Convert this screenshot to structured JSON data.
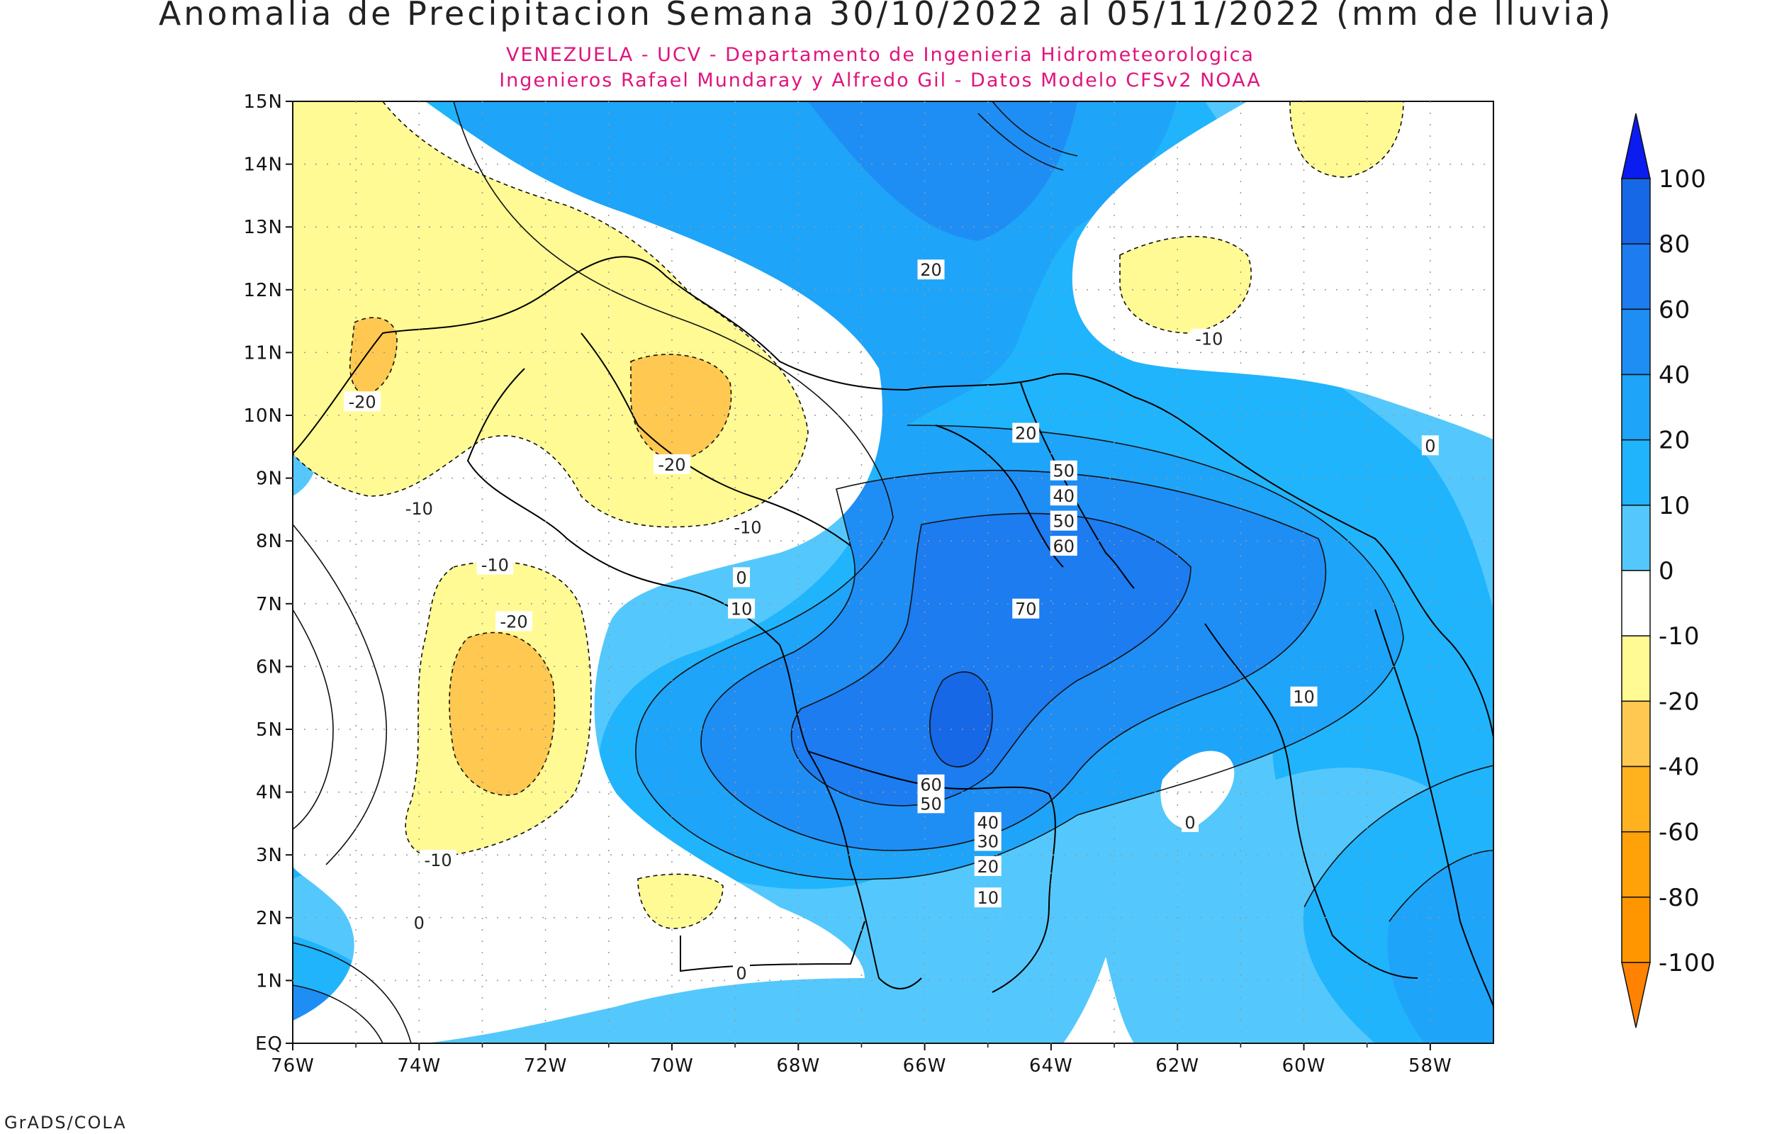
{
  "title": "Anomalia de Precipitacion Semana 30/10/2022 al 05/11/2022 (mm de lluvia)",
  "subtitle_line1": "VENEZUELA - UCV - Departamento de Ingenieria Hidrometeorologica",
  "subtitle_line2": "Ingenieros Rafael Mundaray y Alfredo Gil - Datos Modelo CFSv2 NOAA",
  "footer": "GrADS/COLA",
  "map": {
    "lon_range": [
      -76,
      -57
    ],
    "lat_range": [
      0,
      15
    ],
    "lat_ticks": [
      "15N",
      "14N",
      "13N",
      "12N",
      "11N",
      "10N",
      "9N",
      "8N",
      "7N",
      "6N",
      "5N",
      "4N",
      "3N",
      "2N",
      "1N",
      "EQ"
    ],
    "lon_ticks": [
      "76W",
      "74W",
      "72W",
      "70W",
      "68W",
      "66W",
      "64W",
      "62W",
      "60W",
      "58W"
    ],
    "grid_lines": "dotted"
  },
  "colorbar": {
    "ticks": [
      "100",
      "80",
      "60",
      "40",
      "20",
      "10",
      "0",
      "-10",
      "-20",
      "-40",
      "-60",
      "-80",
      "-100"
    ],
    "colors": [
      "#0a1cf0",
      "#1668e6",
      "#1c7cf0",
      "#1e8ef5",
      "#1ea4f8",
      "#20b4fc",
      "#54c8fc",
      "#ffffff",
      "#fffa94",
      "#ffc850",
      "#ffb21e",
      "#ffa20a",
      "#ff9600",
      "#ff8200"
    ]
  },
  "contour_labels": [
    {
      "text": "20",
      "lon": -65.9,
      "lat": 12.3
    },
    {
      "text": "-10",
      "lon": -61.5,
      "lat": 11.2
    },
    {
      "text": "-20",
      "lon": -74.9,
      "lat": 10.2
    },
    {
      "text": "-20",
      "lon": -70.0,
      "lat": 9.2
    },
    {
      "text": "-10",
      "lon": -74.0,
      "lat": 8.5
    },
    {
      "text": "-10",
      "lon": -68.8,
      "lat": 8.2
    },
    {
      "text": "20",
      "lon": -64.4,
      "lat": 9.7
    },
    {
      "text": "50",
      "lon": -63.8,
      "lat": 9.1
    },
    {
      "text": "40",
      "lon": -63.8,
      "lat": 8.7
    },
    {
      "text": "50",
      "lon": -63.8,
      "lat": 8.3
    },
    {
      "text": "60",
      "lon": -63.8,
      "lat": 7.9
    },
    {
      "text": "-10",
      "lon": -72.8,
      "lat": 7.6
    },
    {
      "text": "0",
      "lon": -68.9,
      "lat": 7.4
    },
    {
      "text": "10",
      "lon": -68.9,
      "lat": 6.9
    },
    {
      "text": "70",
      "lon": -64.4,
      "lat": 6.9
    },
    {
      "text": "-20",
      "lon": -72.5,
      "lat": 6.7
    },
    {
      "text": "0",
      "lon": -58.0,
      "lat": 9.5
    },
    {
      "text": "10",
      "lon": -60.0,
      "lat": 5.5
    },
    {
      "text": "0",
      "lon": -61.8,
      "lat": 3.5
    },
    {
      "text": "60",
      "lon": -65.9,
      "lat": 4.1
    },
    {
      "text": "50",
      "lon": -65.9,
      "lat": 3.8
    },
    {
      "text": "40",
      "lon": -65.0,
      "lat": 3.5
    },
    {
      "text": "30",
      "lon": -65.0,
      "lat": 3.2
    },
    {
      "text": "20",
      "lon": -65.0,
      "lat": 2.8
    },
    {
      "text": "10",
      "lon": -65.0,
      "lat": 2.3
    },
    {
      "text": "-10",
      "lon": -73.7,
      "lat": 2.9
    },
    {
      "text": "0",
      "lon": -74.0,
      "lat": 1.9
    },
    {
      "text": "0",
      "lon": -68.9,
      "lat": 1.1
    }
  ]
}
